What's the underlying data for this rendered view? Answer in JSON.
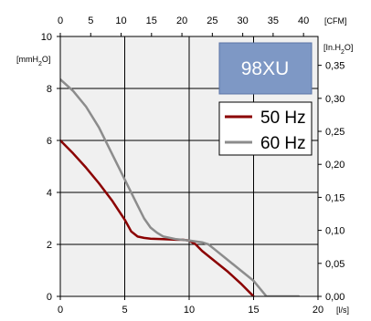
{
  "chart_data": {
    "type": "line",
    "title": "",
    "model_badge": "98XU",
    "units": {
      "x_bottom": "[l/s]",
      "x_top": "[CFM]",
      "y_left": "[mmH2O]",
      "y_right": "[In.H2O]"
    },
    "xlim": [
      0,
      20
    ],
    "ylim": [
      0,
      10
    ],
    "x_ticks_bottom": [
      "0",
      "5",
      "10",
      "15",
      "20"
    ],
    "x_ticks_top": [
      "0",
      "5",
      "10",
      "15",
      "20",
      "25",
      "30",
      "35",
      "40"
    ],
    "y_ticks_left": [
      "0",
      "2",
      "4",
      "6",
      "8",
      "10"
    ],
    "y_ticks_right": [
      "0,00",
      "0,05",
      "0,10",
      "0,15",
      "0,20",
      "0,25",
      "0,30",
      "0,35"
    ],
    "grid": true,
    "legend_position": "top-right",
    "series": [
      {
        "name": "50 Hz",
        "color": "#8b0000",
        "x": [
          0,
          1,
          2,
          3,
          4,
          5,
          5.5,
          6,
          6.5,
          7,
          8,
          9,
          9.5,
          10,
          10.5,
          11,
          12,
          13,
          14,
          15
        ],
        "y": [
          6.0,
          5.5,
          4.95,
          4.35,
          3.7,
          2.95,
          2.5,
          2.3,
          2.25,
          2.22,
          2.2,
          2.18,
          2.18,
          2.15,
          2.0,
          1.75,
          1.35,
          0.95,
          0.5,
          0.0
        ]
      },
      {
        "name": "60 Hz",
        "color": "#8c8c8c",
        "x": [
          0,
          1,
          2,
          3,
          4,
          5,
          6,
          6.5,
          7,
          7.5,
          8,
          9,
          10,
          11,
          11.5,
          12,
          13,
          14,
          15,
          16,
          17,
          18.5
        ],
        "y": [
          8.35,
          7.9,
          7.3,
          6.5,
          5.5,
          4.5,
          3.5,
          3.0,
          2.65,
          2.45,
          2.3,
          2.2,
          2.15,
          2.08,
          2.0,
          1.8,
          1.4,
          1.0,
          0.6,
          0.0,
          -0.1,
          0.0
        ]
      }
    ]
  }
}
